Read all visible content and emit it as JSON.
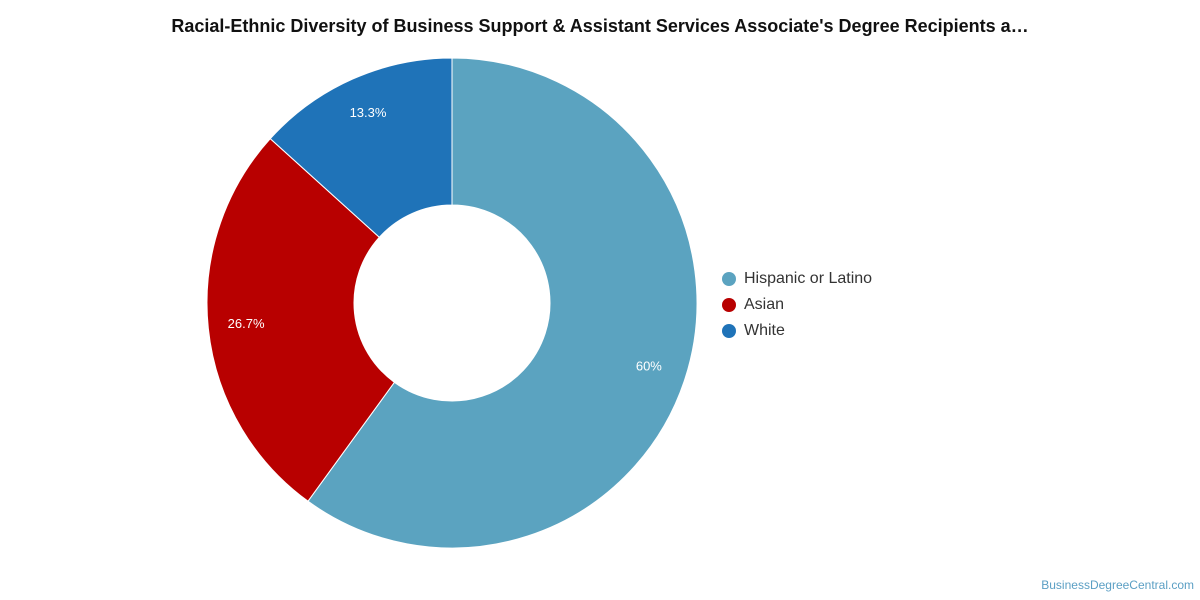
{
  "chart_data": {
    "type": "pie",
    "title": "Racial-Ethnic Diversity of Business Support & Assistant Services Associate's Degree Recipients a…",
    "donut": true,
    "legend_position": "right",
    "slices": [
      {
        "label": "Hispanic or Latino",
        "value": 60,
        "display": "60%",
        "color": "#5ba3c0"
      },
      {
        "label": "Asian",
        "value": 26.7,
        "display": "26.7%",
        "color": "#b80000"
      },
      {
        "label": "White",
        "value": 13.3,
        "display": "13.3%",
        "color": "#1f73b8"
      }
    ]
  },
  "source": "BusinessDegreeCentral.com"
}
